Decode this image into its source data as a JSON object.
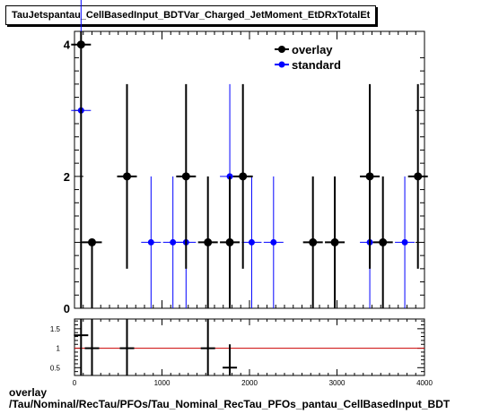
{
  "title": "TauJetspantau_CellBasedInput_BDTVar_Charged_JetMoment_EtDRxTotalEt",
  "footer": {
    "line1": "overlay",
    "line2": "/Tau/Nominal/RecTau/PFOs/Tau_Nominal_RecTau_PFOs_pantau_CellBasedInput_BDT"
  },
  "colors": {
    "overlay": "#000000",
    "standard": "#0000ff",
    "ratio_line": "#cc0000"
  },
  "chart_data": [
    {
      "type": "scatter",
      "xlim": [
        0,
        4000
      ],
      "ylim": [
        0,
        4.2
      ],
      "y_ticks": [
        0,
        2,
        4
      ],
      "grid": false,
      "legend_position": "top-right",
      "series": [
        {
          "name": "overlay",
          "points": [
            {
              "x": 75,
              "y": 4,
              "err_low": 4,
              "err_high": 0.2
            },
            {
              "x": 200,
              "y": 1,
              "err_low": 1,
              "err_high": 0
            },
            {
              "x": 600,
              "y": 2,
              "err_low": 1.4,
              "err_high": 1.4
            },
            {
              "x": 1275,
              "y": 2,
              "err_low": 1.4,
              "err_high": 1.4
            },
            {
              "x": 1525,
              "y": 1,
              "err_low": 1,
              "err_high": 1
            },
            {
              "x": 1775,
              "y": 1,
              "err_low": 1,
              "err_high": 1
            },
            {
              "x": 1925,
              "y": 2,
              "err_low": 1.4,
              "err_high": 1.4
            },
            {
              "x": 2725,
              "y": 1,
              "err_low": 1,
              "err_high": 1
            },
            {
              "x": 2975,
              "y": 1,
              "err_low": 1,
              "err_high": 1
            },
            {
              "x": 3375,
              "y": 2,
              "err_low": 1.4,
              "err_high": 1.4
            },
            {
              "x": 3525,
              "y": 1,
              "err_low": 1,
              "err_high": 1
            },
            {
              "x": 3925,
              "y": 2,
              "err_low": 1.4,
              "err_high": 1.4
            }
          ]
        },
        {
          "name": "standard",
          "points": [
            {
              "x": 75,
              "y": 3,
              "err_low": 1.7,
              "err_high": 1.7
            },
            {
              "x": 875,
              "y": 1,
              "err_low": 1,
              "err_high": 1
            },
            {
              "x": 1125,
              "y": 1,
              "err_low": 1,
              "err_high": 1
            },
            {
              "x": 1275,
              "y": 1,
              "err_low": 1,
              "err_high": 1
            },
            {
              "x": 1775,
              "y": 2,
              "err_low": 1.4,
              "err_high": 1.4
            },
            {
              "x": 2025,
              "y": 1,
              "err_low": 1,
              "err_high": 1
            },
            {
              "x": 2275,
              "y": 1,
              "err_low": 1,
              "err_high": 1
            },
            {
              "x": 3375,
              "y": 1,
              "err_low": 1,
              "err_high": 1
            },
            {
              "x": 3775,
              "y": 1,
              "err_low": 1,
              "err_high": 1
            }
          ]
        }
      ]
    },
    {
      "type": "scatter",
      "xlim": [
        0,
        4000
      ],
      "ylim": [
        0.3,
        1.75
      ],
      "x_ticks": [
        0,
        1000,
        2000,
        3000,
        4000
      ],
      "y_ticks": [
        0.5,
        1,
        1.5
      ],
      "x_tick_labels": [
        "0",
        "1000",
        "2000",
        "3000",
        "4000"
      ],
      "y_tick_labels": [
        "0.5",
        "1",
        "1.5"
      ],
      "reference_line": 1,
      "points": [
        {
          "x": 75,
          "y": 1.333,
          "err_low": 1.333,
          "err_high": 0.42
        },
        {
          "x": 200,
          "y": 1.0,
          "err_low": 1.0,
          "err_high": 0.75
        },
        {
          "x": 600,
          "y": 1.0,
          "err_low": 1.0,
          "err_high": 0.75
        },
        {
          "x": 1525,
          "y": 1.0,
          "err_low": 1.0,
          "err_high": 0.75
        },
        {
          "x": 1775,
          "y": 0.5,
          "err_low": 0.5,
          "err_high": 0.6
        }
      ]
    }
  ]
}
